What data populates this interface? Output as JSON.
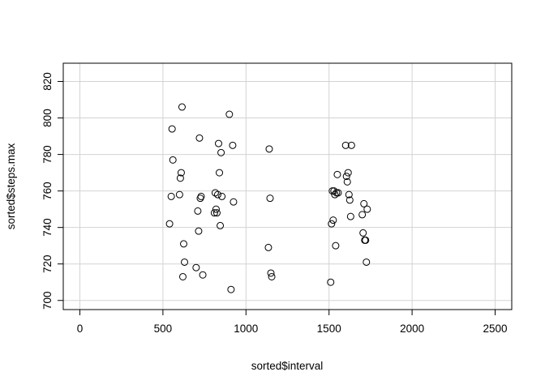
{
  "chart_data": {
    "type": "scatter",
    "title": "",
    "xlabel": "sorted$interval",
    "ylabel": "sorted$steps.max",
    "xlim": [
      -100,
      2600
    ],
    "ylim": [
      695,
      830
    ],
    "x_ticks": [
      0,
      500,
      1000,
      1500,
      2000,
      2500
    ],
    "y_ticks": [
      700,
      720,
      740,
      760,
      780,
      800,
      820
    ],
    "grid": true,
    "point_style": "open-circle",
    "points": [
      {
        "x": 540,
        "y": 742
      },
      {
        "x": 550,
        "y": 757
      },
      {
        "x": 555,
        "y": 794
      },
      {
        "x": 560,
        "y": 777
      },
      {
        "x": 600,
        "y": 758
      },
      {
        "x": 605,
        "y": 767
      },
      {
        "x": 610,
        "y": 770
      },
      {
        "x": 615,
        "y": 806
      },
      {
        "x": 620,
        "y": 713
      },
      {
        "x": 625,
        "y": 731
      },
      {
        "x": 630,
        "y": 721
      },
      {
        "x": 700,
        "y": 718
      },
      {
        "x": 710,
        "y": 749
      },
      {
        "x": 715,
        "y": 738
      },
      {
        "x": 720,
        "y": 789
      },
      {
        "x": 725,
        "y": 756
      },
      {
        "x": 730,
        "y": 757
      },
      {
        "x": 740,
        "y": 714
      },
      {
        "x": 810,
        "y": 748
      },
      {
        "x": 815,
        "y": 759
      },
      {
        "x": 820,
        "y": 750
      },
      {
        "x": 825,
        "y": 748
      },
      {
        "x": 830,
        "y": 758
      },
      {
        "x": 835,
        "y": 786
      },
      {
        "x": 840,
        "y": 770
      },
      {
        "x": 845,
        "y": 741
      },
      {
        "x": 850,
        "y": 781
      },
      {
        "x": 855,
        "y": 757
      },
      {
        "x": 900,
        "y": 802
      },
      {
        "x": 910,
        "y": 706
      },
      {
        "x": 920,
        "y": 785
      },
      {
        "x": 925,
        "y": 754
      },
      {
        "x": 1135,
        "y": 729
      },
      {
        "x": 1140,
        "y": 783
      },
      {
        "x": 1145,
        "y": 756
      },
      {
        "x": 1150,
        "y": 715
      },
      {
        "x": 1155,
        "y": 713
      },
      {
        "x": 1510,
        "y": 710
      },
      {
        "x": 1515,
        "y": 742
      },
      {
        "x": 1520,
        "y": 760
      },
      {
        "x": 1525,
        "y": 744
      },
      {
        "x": 1530,
        "y": 760
      },
      {
        "x": 1535,
        "y": 758
      },
      {
        "x": 1540,
        "y": 730
      },
      {
        "x": 1545,
        "y": 759
      },
      {
        "x": 1550,
        "y": 769
      },
      {
        "x": 1555,
        "y": 759
      },
      {
        "x": 1600,
        "y": 785
      },
      {
        "x": 1605,
        "y": 768
      },
      {
        "x": 1610,
        "y": 765
      },
      {
        "x": 1615,
        "y": 770
      },
      {
        "x": 1620,
        "y": 758
      },
      {
        "x": 1625,
        "y": 755
      },
      {
        "x": 1630,
        "y": 746
      },
      {
        "x": 1635,
        "y": 785
      },
      {
        "x": 1700,
        "y": 747
      },
      {
        "x": 1705,
        "y": 737
      },
      {
        "x": 1710,
        "y": 753
      },
      {
        "x": 1715,
        "y": 733
      },
      {
        "x": 1720,
        "y": 733
      },
      {
        "x": 1725,
        "y": 721
      },
      {
        "x": 1730,
        "y": 750
      }
    ]
  }
}
